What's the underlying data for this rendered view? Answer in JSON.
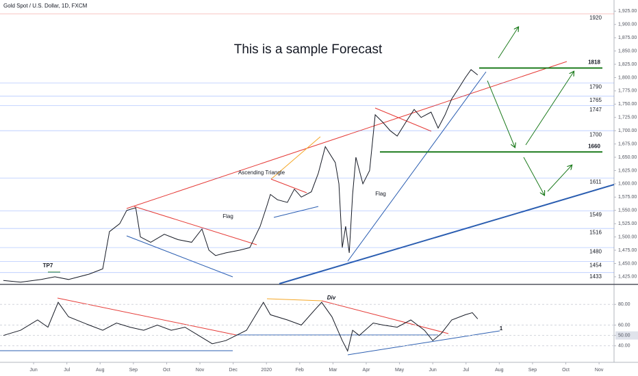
{
  "chart_data": [
    {
      "type": "line",
      "title": "Gold Spot / U.S. Dollar, 1D, FXCM",
      "subtitle": "This is a sample Forecast",
      "x": [
        -0.91,
        -0.39,
        0.23,
        0.64,
        1.05,
        1.67,
        2.08,
        2.28,
        2.59,
        2.8,
        3.07,
        3.21,
        3.52,
        3.93,
        4.34,
        4.75,
        5.06,
        5.27,
        5.47,
        5.78,
        6.19,
        6.5,
        6.81,
        7.02,
        7.12,
        7.33,
        7.63,
        7.84,
        8.05,
        8.35,
        8.56,
        8.77,
        9.07,
        9.18,
        9.28,
        9.38,
        9.49,
        9.59,
        9.69,
        9.9,
        10.1,
        10.27,
        10.51,
        10.72,
        10.93,
        11.23,
        11.44,
        11.65,
        11.95,
        12.16,
        12.37,
        12.57,
        12.78,
        12.98,
        13.15,
        13.35
      ],
      "values": [
        1418,
        1415,
        1420,
        1425,
        1420,
        1430,
        1440,
        1510,
        1525,
        1550,
        1555,
        1500,
        1490,
        1505,
        1495,
        1490,
        1515,
        1475,
        1465,
        1470,
        1475,
        1480,
        1520,
        1560,
        1580,
        1570,
        1565,
        1590,
        1575,
        1585,
        1620,
        1670,
        1640,
        1600,
        1480,
        1520,
        1470,
        1580,
        1650,
        1600,
        1625,
        1730,
        1715,
        1700,
        1690,
        1720,
        1740,
        1725,
        1735,
        1705,
        1730,
        1760,
        1780,
        1800,
        1815,
        1805
      ],
      "color": "#131722",
      "xlim": [
        -1.01,
        17.45
      ],
      "ylim": [
        1412,
        1946
      ],
      "yticks": [
        {
          "value": 1425,
          "label": "1,425.00"
        },
        {
          "value": 1450,
          "label": "1,450.00"
        },
        {
          "value": 1475,
          "label": "1,475.00"
        },
        {
          "value": 1500,
          "label": "1,500.00"
        },
        {
          "value": 1525,
          "label": "1,525.00"
        },
        {
          "value": 1550,
          "label": "1,550.00"
        },
        {
          "value": 1575,
          "label": "1,575.00"
        },
        {
          "value": 1600,
          "label": "1,600.00"
        },
        {
          "value": 1625,
          "label": "1,625.00"
        },
        {
          "value": 1650,
          "label": "1,650.00"
        },
        {
          "value": 1675,
          "label": "1,675.00"
        },
        {
          "value": 1700,
          "label": "1,700.00"
        },
        {
          "value": 1725,
          "label": "1,725.00"
        },
        {
          "value": 1750,
          "label": "1,750.00"
        },
        {
          "value": 1775,
          "label": "1,775.00"
        },
        {
          "value": 1800,
          "label": "1,800.00"
        },
        {
          "value": 1825,
          "label": "1,825.00"
        },
        {
          "value": 1850,
          "label": "1,850.00"
        },
        {
          "value": 1875,
          "label": "1,875.00"
        },
        {
          "value": 1900,
          "label": "1,900.00"
        },
        {
          "value": 1925,
          "label": "1,925.00"
        }
      ],
      "levels": [
        {
          "value": 1920,
          "color": "#e53935",
          "bold": false
        },
        {
          "value": 1818,
          "color": "#1b7a1b",
          "bold": true
        },
        {
          "value": 1790,
          "color": "#2962ff",
          "bold": false
        },
        {
          "value": 1765,
          "color": "#2962ff",
          "bold": false
        },
        {
          "value": 1747,
          "color": "#2962ff",
          "bold": false
        },
        {
          "value": 1700,
          "color": "#2962ff",
          "bold": false
        },
        {
          "value": 1660,
          "color": "#1b7a1b",
          "bold": true
        },
        {
          "value": 1611,
          "color": "#2962ff",
          "bold": false
        },
        {
          "value": 1549,
          "color": "#2962ff",
          "bold": false
        },
        {
          "value": 1516,
          "color": "#2962ff",
          "bold": false
        },
        {
          "value": 1480,
          "color": "#2962ff",
          "bold": false
        },
        {
          "value": 1454,
          "color": "#2962ff",
          "bold": false
        },
        {
          "value": 1433,
          "color": "#2962ff",
          "bold": false
        }
      ],
      "annotations": [
        "Flag",
        "Ascending Triangle",
        "Flag",
        "TP7"
      ]
    },
    {
      "type": "line",
      "x": [
        -0.91,
        -0.39,
        0.12,
        0.43,
        0.74,
        1.05,
        1.67,
        2.08,
        2.49,
        2.9,
        3.31,
        3.72,
        4.14,
        4.55,
        4.96,
        5.37,
        5.78,
        6.09,
        6.4,
        6.91,
        7.12,
        7.63,
        8.05,
        8.46,
        8.66,
        8.97,
        9.28,
        9.44,
        9.59,
        9.79,
        10.21,
        10.51,
        10.93,
        11.34,
        11.75,
        12.0,
        12.26,
        12.57,
        12.98,
        13.19,
        13.35
      ],
      "values": [
        50,
        55,
        65,
        58,
        82,
        68,
        60,
        55,
        62,
        58,
        55,
        60,
        55,
        58,
        50,
        42,
        45,
        50,
        55,
        82,
        70,
        65,
        60,
        75,
        82,
        68,
        45,
        35,
        55,
        50,
        62,
        60,
        58,
        65,
        55,
        45,
        52,
        65,
        70,
        72,
        66
      ],
      "color": "#131722",
      "xlim": [
        -1.01,
        17.45
      ],
      "ylim": [
        26,
        98
      ],
      "yticks": [
        {
          "value": 40,
          "label": "40.00"
        },
        {
          "value": 50,
          "label": "50.00"
        },
        {
          "value": 60,
          "label": "60.00"
        },
        {
          "value": 80,
          "label": "80.00"
        }
      ],
      "xticks": [
        {
          "value": 0,
          "label": "Jun"
        },
        {
          "value": 1,
          "label": "Jul"
        },
        {
          "value": 2,
          "label": "Aug"
        },
        {
          "value": 3,
          "label": "Sep"
        },
        {
          "value": 4,
          "label": "Oct"
        },
        {
          "value": 5,
          "label": "Nov"
        },
        {
          "value": 6,
          "label": "Dec"
        },
        {
          "value": 7,
          "label": "2020"
        },
        {
          "value": 8,
          "label": "Feb"
        },
        {
          "value": 9,
          "label": "Mar"
        },
        {
          "value": 10,
          "label": "Apr"
        },
        {
          "value": 11,
          "label": "May"
        },
        {
          "value": 12,
          "label": "Jun"
        },
        {
          "value": 13,
          "label": "Jul"
        },
        {
          "value": 14,
          "label": "Aug"
        },
        {
          "value": 15,
          "label": "Sep"
        },
        {
          "value": 16,
          "label": "Oct"
        },
        {
          "value": 17,
          "label": "Nov"
        }
      ],
      "annotations": [
        "Div",
        "1"
      ]
    }
  ]
}
